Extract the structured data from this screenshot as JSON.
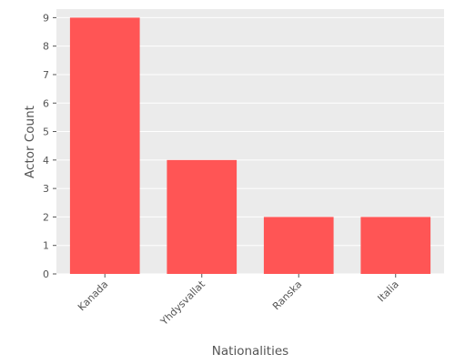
{
  "chart_data": {
    "type": "bar",
    "categories": [
      "Kanada",
      "Yhdysvallat",
      "Ranska",
      "Italia"
    ],
    "values": [
      9,
      4,
      2,
      2
    ],
    "title": "",
    "xlabel": "Nationalities",
    "ylabel": "Actor Count",
    "ylim": [
      0,
      9.3
    ],
    "yticks": [
      0,
      1,
      2,
      3,
      4,
      5,
      6,
      7,
      8,
      9
    ],
    "grid": true,
    "colors": {
      "bar": "#ff5555",
      "plot_background": "#ebebeb",
      "grid": "#ffffff",
      "text": "#555555"
    }
  }
}
